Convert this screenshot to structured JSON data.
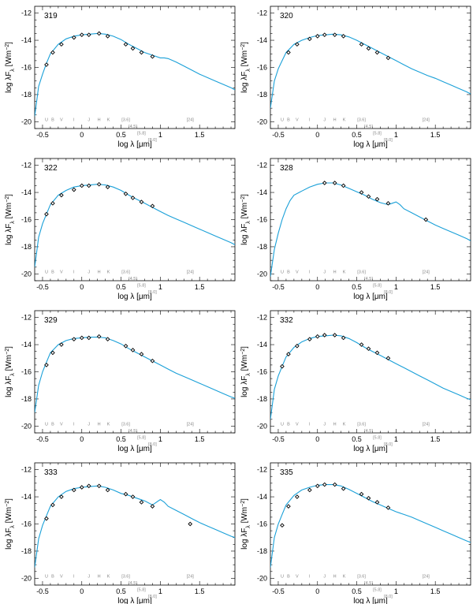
{
  "axes": {
    "xlabel": "log λ [μm]",
    "ylabel_base": "log λF",
    "ylabel_sub": "λ",
    "ylabel_unit": "[Wm",
    "ylabel_exp": "−2",
    "ylabel_close": "]",
    "xlim": [
      -0.6,
      1.95
    ],
    "ylim": [
      -20.5,
      -11.5
    ],
    "xticks": [
      -0.5,
      0,
      0.5,
      1,
      1.5
    ],
    "xticklabels": [
      "-0.5",
      "0",
      "0.5",
      "1",
      "1.5"
    ],
    "yticks": [
      -20,
      -18,
      -16,
      -14,
      -12
    ],
    "yticklabels": [
      "-20",
      "-18",
      "-16",
      "-14",
      "-12"
    ]
  },
  "band_labels": [
    {
      "text": "U",
      "x": -0.45,
      "row": 0
    },
    {
      "text": "B",
      "x": -0.37,
      "row": 0
    },
    {
      "text": "V",
      "x": -0.26,
      "row": 0
    },
    {
      "text": "I",
      "x": -0.1,
      "row": 0
    },
    {
      "text": "J",
      "x": 0.09,
      "row": 0
    },
    {
      "text": "H",
      "x": 0.22,
      "row": 0
    },
    {
      "text": "K",
      "x": 0.34,
      "row": 0
    },
    {
      "text": "[3.6]",
      "x": 0.56,
      "row": 0
    },
    {
      "text": "[4.5]",
      "x": 0.65,
      "row": 1
    },
    {
      "text": "[5.8]",
      "x": 0.76,
      "row": 2
    },
    {
      "text": "[8.0]",
      "x": 0.9,
      "row": 3
    },
    {
      "text": "[24]",
      "x": 1.38,
      "row": 0
    }
  ],
  "colors": {
    "model": "#1aa0d8",
    "points": "#000000",
    "axis": "#000000",
    "bands": "#888888"
  },
  "chart_data": [
    {
      "type": "scatter",
      "id": "319",
      "series": [
        {
          "name": "photometry",
          "x": [
            -0.45,
            -0.37,
            -0.26,
            -0.1,
            0.0,
            0.09,
            0.22,
            0.33,
            0.56,
            0.65,
            0.76,
            0.9
          ],
          "y": [
            -15.8,
            -14.9,
            -14.3,
            -13.8,
            -13.6,
            -13.6,
            -13.5,
            -13.7,
            -14.3,
            -14.6,
            -14.9,
            -15.2
          ]
        },
        {
          "name": "model",
          "x": [
            -0.6,
            -0.55,
            -0.5,
            -0.45,
            -0.4,
            -0.3,
            -0.2,
            -0.1,
            0,
            0.1,
            0.2,
            0.3,
            0.4,
            0.5,
            0.6,
            0.7,
            0.8,
            0.9,
            1.0,
            1.05,
            1.1,
            1.2,
            1.3,
            1.4,
            1.5,
            1.6,
            1.7,
            1.8,
            1.9,
            1.95
          ],
          "y": [
            -19.6,
            -17.4,
            -16.5,
            -15.7,
            -15.0,
            -14.3,
            -13.9,
            -13.7,
            -13.6,
            -13.55,
            -13.5,
            -13.55,
            -13.7,
            -13.95,
            -14.3,
            -14.6,
            -14.9,
            -15.1,
            -15.3,
            -15.3,
            -15.35,
            -15.6,
            -15.9,
            -16.2,
            -16.5,
            -16.75,
            -17.0,
            -17.25,
            -17.5,
            -17.65
          ]
        }
      ]
    },
    {
      "type": "scatter",
      "id": "320",
      "series": [
        {
          "name": "photometry",
          "x": [
            -0.37,
            -0.26,
            -0.1,
            0.0,
            0.09,
            0.22,
            0.33,
            0.56,
            0.65,
            0.76,
            0.9
          ],
          "y": [
            -14.9,
            -14.3,
            -13.9,
            -13.7,
            -13.6,
            -13.6,
            -13.7,
            -14.3,
            -14.6,
            -14.9,
            -15.3
          ]
        },
        {
          "name": "model",
          "x": [
            -0.6,
            -0.55,
            -0.5,
            -0.45,
            -0.4,
            -0.3,
            -0.2,
            -0.1,
            0,
            0.1,
            0.2,
            0.3,
            0.4,
            0.5,
            0.6,
            0.7,
            0.8,
            0.9,
            1.0,
            1.1,
            1.2,
            1.3,
            1.4,
            1.5,
            1.6,
            1.7,
            1.8,
            1.9,
            1.95
          ],
          "y": [
            -19.0,
            -17.0,
            -16.1,
            -15.5,
            -14.9,
            -14.3,
            -14.0,
            -13.8,
            -13.65,
            -13.6,
            -13.55,
            -13.6,
            -13.75,
            -14.0,
            -14.3,
            -14.6,
            -14.9,
            -15.2,
            -15.5,
            -15.8,
            -16.1,
            -16.35,
            -16.6,
            -16.8,
            -17.05,
            -17.3,
            -17.55,
            -17.8,
            -17.95
          ]
        }
      ]
    },
    {
      "type": "scatter",
      "id": "322",
      "series": [
        {
          "name": "photometry",
          "x": [
            -0.45,
            -0.37,
            -0.26,
            -0.1,
            0.0,
            0.09,
            0.22,
            0.33,
            0.56,
            0.65,
            0.76,
            0.9
          ],
          "y": [
            -15.6,
            -14.8,
            -14.2,
            -13.8,
            -13.5,
            -13.5,
            -13.4,
            -13.6,
            -14.1,
            -14.4,
            -14.7,
            -15.0
          ]
        },
        {
          "name": "model",
          "x": [
            -0.6,
            -0.55,
            -0.5,
            -0.45,
            -0.4,
            -0.3,
            -0.2,
            -0.1,
            0,
            0.1,
            0.2,
            0.3,
            0.4,
            0.5,
            0.6,
            0.7,
            0.8,
            0.9,
            1.0,
            1.1,
            1.2,
            1.3,
            1.4,
            1.5,
            1.6,
            1.7,
            1.8,
            1.9,
            1.95
          ],
          "y": [
            -19.5,
            -17.3,
            -16.3,
            -15.6,
            -14.9,
            -14.2,
            -13.85,
            -13.6,
            -13.5,
            -13.45,
            -13.4,
            -13.45,
            -13.6,
            -13.85,
            -14.2,
            -14.5,
            -14.8,
            -15.1,
            -15.4,
            -15.7,
            -15.95,
            -16.2,
            -16.45,
            -16.7,
            -16.95,
            -17.2,
            -17.45,
            -17.7,
            -17.85
          ]
        }
      ]
    },
    {
      "type": "scatter",
      "id": "328",
      "series": [
        {
          "name": "photometry",
          "x": [
            0.09,
            0.22,
            0.33,
            0.56,
            0.65,
            0.76,
            0.9,
            1.38
          ],
          "y": [
            -13.3,
            -13.3,
            -13.5,
            -14.0,
            -14.3,
            -14.5,
            -14.8,
            -16.0
          ]
        },
        {
          "name": "model",
          "x": [
            -0.6,
            -0.55,
            -0.5,
            -0.45,
            -0.4,
            -0.35,
            -0.3,
            -0.2,
            -0.1,
            0,
            0.1,
            0.2,
            0.3,
            0.4,
            0.5,
            0.6,
            0.7,
            0.8,
            0.9,
            0.95,
            1.0,
            1.05,
            1.1,
            1.2,
            1.3,
            1.4,
            1.5,
            1.6,
            1.7,
            1.8,
            1.9,
            1.95
          ],
          "y": [
            -20.2,
            -18.2,
            -17.0,
            -16.0,
            -15.2,
            -14.6,
            -14.2,
            -13.9,
            -13.6,
            -13.4,
            -13.3,
            -13.3,
            -13.45,
            -13.7,
            -13.95,
            -14.2,
            -14.5,
            -14.75,
            -14.9,
            -14.8,
            -14.7,
            -14.9,
            -15.2,
            -15.5,
            -15.8,
            -16.1,
            -16.4,
            -16.65,
            -16.9,
            -17.15,
            -17.4,
            -17.55
          ]
        }
      ]
    },
    {
      "type": "scatter",
      "id": "329",
      "series": [
        {
          "name": "photometry",
          "x": [
            -0.45,
            -0.37,
            -0.26,
            -0.1,
            0.0,
            0.09,
            0.22,
            0.33,
            0.56,
            0.65,
            0.76,
            0.9
          ],
          "y": [
            -15.5,
            -14.6,
            -14.0,
            -13.6,
            -13.5,
            -13.5,
            -13.4,
            -13.6,
            -14.1,
            -14.4,
            -14.7,
            -15.2
          ]
        },
        {
          "name": "model",
          "x": [
            -0.6,
            -0.55,
            -0.5,
            -0.45,
            -0.4,
            -0.3,
            -0.2,
            -0.1,
            0,
            0.1,
            0.2,
            0.3,
            0.4,
            0.5,
            0.6,
            0.7,
            0.8,
            0.9,
            1.0,
            1.1,
            1.2,
            1.3,
            1.4,
            1.5,
            1.6,
            1.7,
            1.8,
            1.9,
            1.95
          ],
          "y": [
            -19.0,
            -17.0,
            -16.0,
            -15.3,
            -14.6,
            -14.0,
            -13.7,
            -13.55,
            -13.5,
            -13.45,
            -13.45,
            -13.5,
            -13.7,
            -13.95,
            -14.3,
            -14.6,
            -14.9,
            -15.2,
            -15.5,
            -15.8,
            -16.1,
            -16.35,
            -16.6,
            -16.85,
            -17.1,
            -17.35,
            -17.6,
            -17.85,
            -17.95
          ]
        }
      ]
    },
    {
      "type": "scatter",
      "id": "332",
      "series": [
        {
          "name": "photometry",
          "x": [
            -0.45,
            -0.37,
            -0.26,
            -0.1,
            0.0,
            0.09,
            0.22,
            0.33,
            0.56,
            0.65,
            0.76,
            0.9
          ],
          "y": [
            -15.6,
            -14.7,
            -14.1,
            -13.6,
            -13.4,
            -13.3,
            -13.3,
            -13.5,
            -14.0,
            -14.3,
            -14.6,
            -15.0
          ]
        },
        {
          "name": "model",
          "x": [
            -0.6,
            -0.55,
            -0.5,
            -0.45,
            -0.4,
            -0.3,
            -0.2,
            -0.1,
            0,
            0.1,
            0.2,
            0.3,
            0.4,
            0.5,
            0.6,
            0.7,
            0.8,
            0.9,
            1.0,
            1.1,
            1.2,
            1.3,
            1.4,
            1.5,
            1.6,
            1.7,
            1.8,
            1.9,
            1.95
          ],
          "y": [
            -19.5,
            -17.3,
            -16.3,
            -15.6,
            -14.9,
            -14.2,
            -13.8,
            -13.55,
            -13.4,
            -13.35,
            -13.3,
            -13.35,
            -13.55,
            -13.85,
            -14.2,
            -14.5,
            -14.8,
            -15.1,
            -15.4,
            -15.7,
            -16.0,
            -16.3,
            -16.6,
            -16.9,
            -17.2,
            -17.45,
            -17.7,
            -17.95,
            -18.05
          ]
        }
      ]
    },
    {
      "type": "scatter",
      "id": "333",
      "series": [
        {
          "name": "photometry",
          "x": [
            -0.45,
            -0.37,
            -0.26,
            -0.1,
            0.0,
            0.09,
            0.22,
            0.33,
            0.56,
            0.65,
            0.76,
            0.9,
            1.38
          ],
          "y": [
            -15.6,
            -14.6,
            -14.0,
            -13.5,
            -13.3,
            -13.2,
            -13.2,
            -13.5,
            -13.8,
            -14.0,
            -14.4,
            -14.7,
            -16.0
          ]
        },
        {
          "name": "model",
          "x": [
            -0.6,
            -0.55,
            -0.5,
            -0.45,
            -0.4,
            -0.3,
            -0.2,
            -0.1,
            0,
            0.1,
            0.2,
            0.3,
            0.4,
            0.5,
            0.6,
            0.7,
            0.8,
            0.9,
            0.95,
            1.0,
            1.05,
            1.1,
            1.2,
            1.3,
            1.4,
            1.5,
            1.6,
            1.7,
            1.8,
            1.9,
            1.95
          ],
          "y": [
            -19.2,
            -17.1,
            -16.1,
            -15.4,
            -14.7,
            -14.0,
            -13.6,
            -13.4,
            -13.3,
            -13.25,
            -13.2,
            -13.3,
            -13.5,
            -13.75,
            -13.9,
            -14.1,
            -14.3,
            -14.6,
            -14.4,
            -14.2,
            -14.4,
            -14.7,
            -15.0,
            -15.3,
            -15.6,
            -15.9,
            -16.15,
            -16.4,
            -16.65,
            -16.9,
            -17.0
          ]
        }
      ]
    },
    {
      "type": "scatter",
      "id": "335",
      "series": [
        {
          "name": "photometry",
          "x": [
            -0.45,
            -0.37,
            -0.26,
            -0.1,
            0.0,
            0.09,
            0.22,
            0.33,
            0.56,
            0.65,
            0.76,
            0.9
          ],
          "y": [
            -16.1,
            -14.7,
            -14.0,
            -13.5,
            -13.2,
            -13.1,
            -13.1,
            -13.4,
            -13.8,
            -14.1,
            -14.4,
            -14.8
          ]
        },
        {
          "name": "model",
          "x": [
            -0.6,
            -0.55,
            -0.5,
            -0.45,
            -0.4,
            -0.3,
            -0.2,
            -0.1,
            0,
            0.1,
            0.2,
            0.3,
            0.4,
            0.5,
            0.6,
            0.7,
            0.8,
            0.9,
            1.0,
            1.1,
            1.2,
            1.3,
            1.4,
            1.5,
            1.6,
            1.7,
            1.8,
            1.9,
            1.95
          ],
          "y": [
            -19.2,
            -17.0,
            -16.0,
            -15.3,
            -14.6,
            -13.9,
            -13.5,
            -13.3,
            -13.15,
            -13.1,
            -13.1,
            -13.2,
            -13.45,
            -13.75,
            -14.05,
            -14.35,
            -14.6,
            -14.85,
            -15.1,
            -15.3,
            -15.5,
            -15.75,
            -16.0,
            -16.25,
            -16.5,
            -16.75,
            -17.0,
            -17.25,
            -17.35
          ]
        }
      ]
    }
  ]
}
